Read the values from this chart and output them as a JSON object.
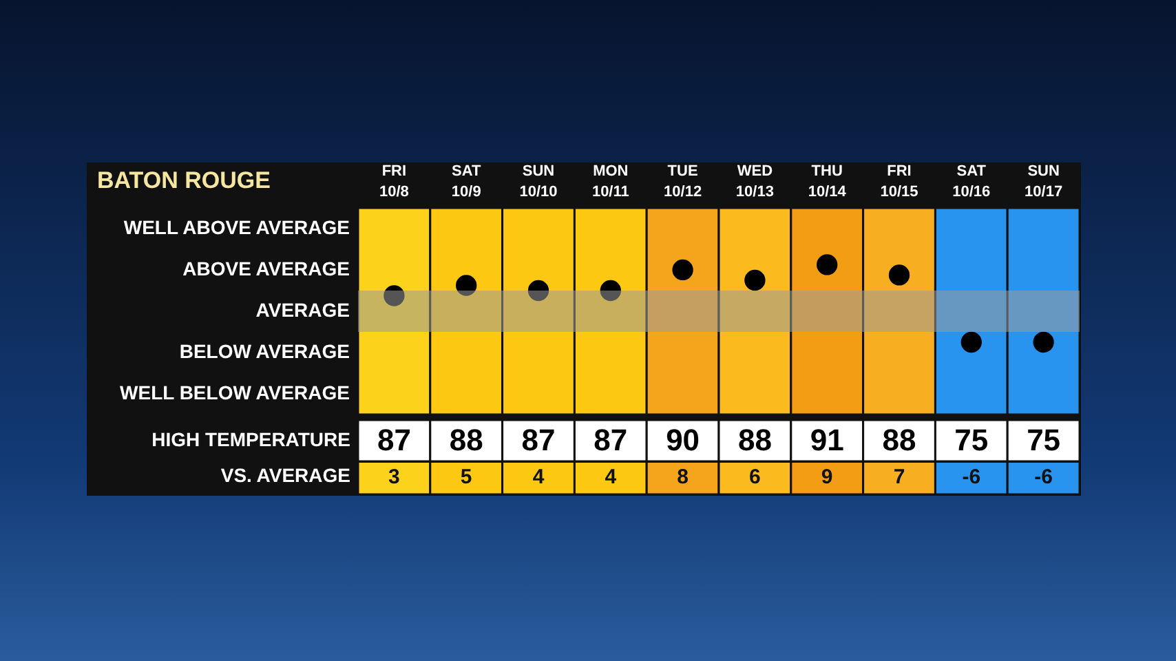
{
  "chart_data": [
    {
      "type": "scatter",
      "title": "BATON ROUGE",
      "categories": [
        "FRI 10/8",
        "SAT 10/9",
        "SUN 10/10",
        "MON 10/11",
        "TUE 10/12",
        "WED 10/13",
        "THU 10/14",
        "FRI 10/15",
        "SAT 10/16",
        "SUN 10/17"
      ],
      "bands": [
        {
          "axis": "x",
          "from": "FRI 10/8",
          "to": "FRI 10/8",
          "color": "#fdd21a"
        },
        {
          "axis": "x",
          "from": "SAT 10/9",
          "to": "SAT 10/9",
          "color": "#fdc812"
        },
        {
          "axis": "x",
          "from": "SUN 10/10",
          "to": "SUN 10/10",
          "color": "#fdc812"
        },
        {
          "axis": "x",
          "from": "MON 10/11",
          "to": "MON 10/11",
          "color": "#fdc812"
        },
        {
          "axis": "x",
          "from": "TUE 10/12",
          "to": "TUE 10/12",
          "color": "#f5a51c"
        },
        {
          "axis": "x",
          "from": "WED 10/13",
          "to": "WED 10/13",
          "color": "#fbbb1e"
        },
        {
          "axis": "x",
          "from": "THU 10/14",
          "to": "THU 10/14",
          "color": "#f39d14"
        },
        {
          "axis": "x",
          "from": "FRI 10/15",
          "to": "FRI 10/15",
          "color": "#f7ae20"
        },
        {
          "axis": "x",
          "from": "SAT 10/16",
          "to": "SAT 10/16",
          "color": "#2894f0"
        },
        {
          "axis": "x",
          "from": "SUN 10/17",
          "to": "SUN 10/17",
          "color": "#2894f0"
        }
      ],
      "series": [
        {
          "name": "VS. AVERAGE",
          "color": "#000000",
          "values": [
            3,
            5,
            4,
            4,
            8,
            6,
            9,
            7,
            -6,
            -6
          ]
        }
      ],
      "data_labels": true,
      "annotations": [
        "WELL ABOVE AVERAGE",
        "ABOVE AVERAGE",
        "AVERAGE",
        "BELOW AVERAGE",
        "WELL BELOW AVERAGE"
      ],
      "marker": "circle"
    },
    {
      "type": "other",
      "title": "HIGH TEMPERATURE",
      "values": [
        87,
        88,
        87,
        87,
        90,
        88,
        91,
        88,
        75,
        75
      ],
      "data_labels": true
    }
  ]
}
